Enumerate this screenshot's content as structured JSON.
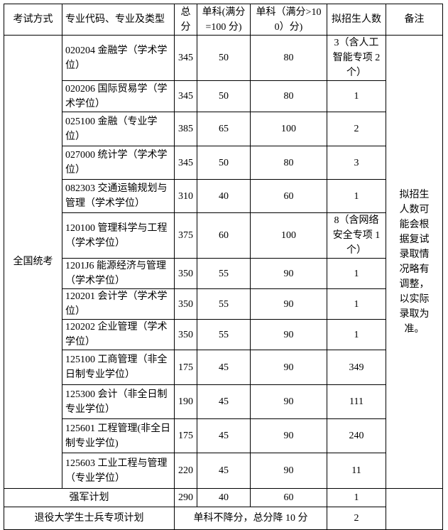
{
  "header": [
    "考试方式",
    "专业代码、专业及类型",
    "总分",
    "单科(满分=100 分)",
    "单科（满分>100）分)",
    "拟招生人数",
    "备注"
  ],
  "exam_mode": "全国统考",
  "remark": "拟招生人数可能会根据复试录取情况略有调整，以实际录取为准。",
  "rows": [
    {
      "major": "020204 金融学（学术学位）",
      "total": "345",
      "s100": "50",
      "s100p": "80",
      "quota": "3（含人工智能专项 2 个）"
    },
    {
      "major": "020206 国际贸易学（学术学位）",
      "total": "345",
      "s100": "50",
      "s100p": "80",
      "quota": "1"
    },
    {
      "major": "025100 金融（专业学位）",
      "total": "385",
      "s100": "65",
      "s100p": "100",
      "quota": "2"
    },
    {
      "major": "027000 统计学（学术学位）",
      "total": "345",
      "s100": "50",
      "s100p": "80",
      "quota": "3"
    },
    {
      "major": "082303 交通运输规划与管理（学术学位）",
      "total": "310",
      "s100": "40",
      "s100p": "60",
      "quota": "1"
    },
    {
      "major": "120100 管理科学与工程（学术学位）",
      "total": "375",
      "s100": "60",
      "s100p": "100",
      "quota": "8（含网络安全专项 1 个）"
    },
    {
      "major": "1201J6 能源经济与管理（学术学位）",
      "total": "350",
      "s100": "55",
      "s100p": "90",
      "quota": "1"
    },
    {
      "major": "120201 会计学（学术学位）",
      "total": "350",
      "s100": "55",
      "s100p": "90",
      "quota": "1"
    },
    {
      "major": "120202 企业管理（学术学位）",
      "total": "350",
      "s100": "55",
      "s100p": "90",
      "quota": "1"
    },
    {
      "major": "125100 工商管理（非全日制专业学位）",
      "total": "175",
      "s100": "45",
      "s100p": "90",
      "quota": "349"
    },
    {
      "major": "125300 会计（非全日制专业学位）",
      "total": "190",
      "s100": "45",
      "s100p": "90",
      "quota": "111"
    },
    {
      "major": "125601 工程管理(非全日制专业学位)",
      "total": "175",
      "s100": "45",
      "s100p": "90",
      "quota": "240"
    },
    {
      "major": "125603 工业工程与管理（专业学位）",
      "total": "220",
      "s100": "45",
      "s100p": "90",
      "quota": "11"
    }
  ],
  "army": {
    "label": "强军计划",
    "total": "290",
    "s100": "40",
    "s100p": "60",
    "quota": "1"
  },
  "veteran": {
    "label": "退役大学生士兵专项计划",
    "rule": "单科不降分，总分降 10 分",
    "quota": "2"
  }
}
